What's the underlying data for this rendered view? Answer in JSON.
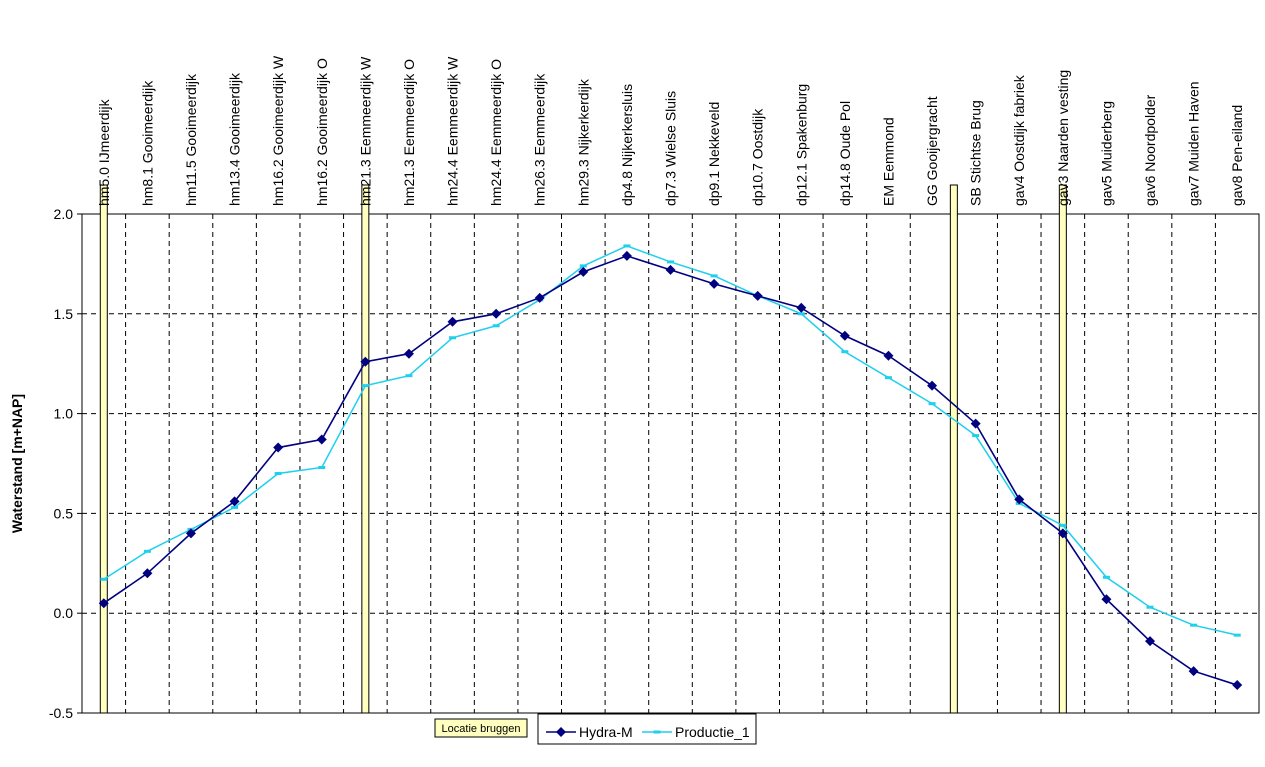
{
  "chart_data": {
    "type": "line",
    "ylabel": "Waterstand [m+NAP]",
    "ylim": [
      -0.5,
      2.0
    ],
    "yticks": [
      "2.0",
      "1.5",
      "1.0",
      "0.5",
      "0.0",
      "-0.5"
    ],
    "ytick_values": [
      2.0,
      1.5,
      1.0,
      0.5,
      0.0,
      -0.5
    ],
    "grid": true,
    "legend_placement": "bottom-center",
    "categories": [
      "hm5.0 IJmeerdijk",
      "hm8.1 Gooimeerdijk",
      "hm11.5 Gooimeerdijk",
      "hm13.4 Gooimeerdijk",
      "hm16.2 Gooimeerdijk W",
      "hm16.2 Gooimeerdijk O",
      "hm21.3 Eemmeerdijk W",
      "hm21.3 Eemmeerdijk O",
      "hm24.4 Eemmeerdijk W",
      "hm24.4 Eemmeerdijk O",
      "hm26.3 Eemmeerdijk",
      "hm29.3 Nijkerkerdijk",
      "dp4.8 Nijkerkersluis",
      "dp7.3 Wielse Sluis",
      "dp9.1 Nekkeveld",
      "dp10.7 Oostdijk",
      "dp12.1 Spakenburg",
      "dp14.8 Oude Pol",
      "EM Eemmond",
      "GG Gooijergracht",
      "SB Stichtse Brug",
      "gav4 Oostdijk fabriek",
      "gav3 Naarden vesting",
      "gav5 Muiderberg",
      "gav6 Noordpolder",
      "gav7 Muiden Haven",
      "gav8 Pen-eiland"
    ],
    "series": [
      {
        "name": "Hydra-M",
        "color": "#000080",
        "marker": "diamond",
        "values": [
          0.05,
          0.2,
          0.4,
          0.56,
          0.83,
          0.87,
          1.26,
          1.3,
          1.46,
          1.5,
          1.58,
          1.71,
          1.79,
          1.72,
          1.65,
          1.59,
          1.53,
          1.39,
          1.29,
          1.14,
          0.95,
          0.57,
          0.4,
          0.07,
          -0.14,
          -0.29,
          -0.36
        ]
      },
      {
        "name": "Productie_1",
        "color": "#1fcfee",
        "marker": "dash",
        "values": [
          0.17,
          0.31,
          0.42,
          0.53,
          0.7,
          0.73,
          1.14,
          1.19,
          1.38,
          1.44,
          1.57,
          1.74,
          1.84,
          1.76,
          1.69,
          1.59,
          1.5,
          1.31,
          1.18,
          1.05,
          0.89,
          0.55,
          0.44,
          0.18,
          0.03,
          -0.06,
          -0.11
        ]
      }
    ],
    "bridges": {
      "label": "Locatie bruggen",
      "color": "#ffffc0",
      "positions": [
        0.5,
        6.5,
        20.0,
        22.5
      ]
    }
  }
}
